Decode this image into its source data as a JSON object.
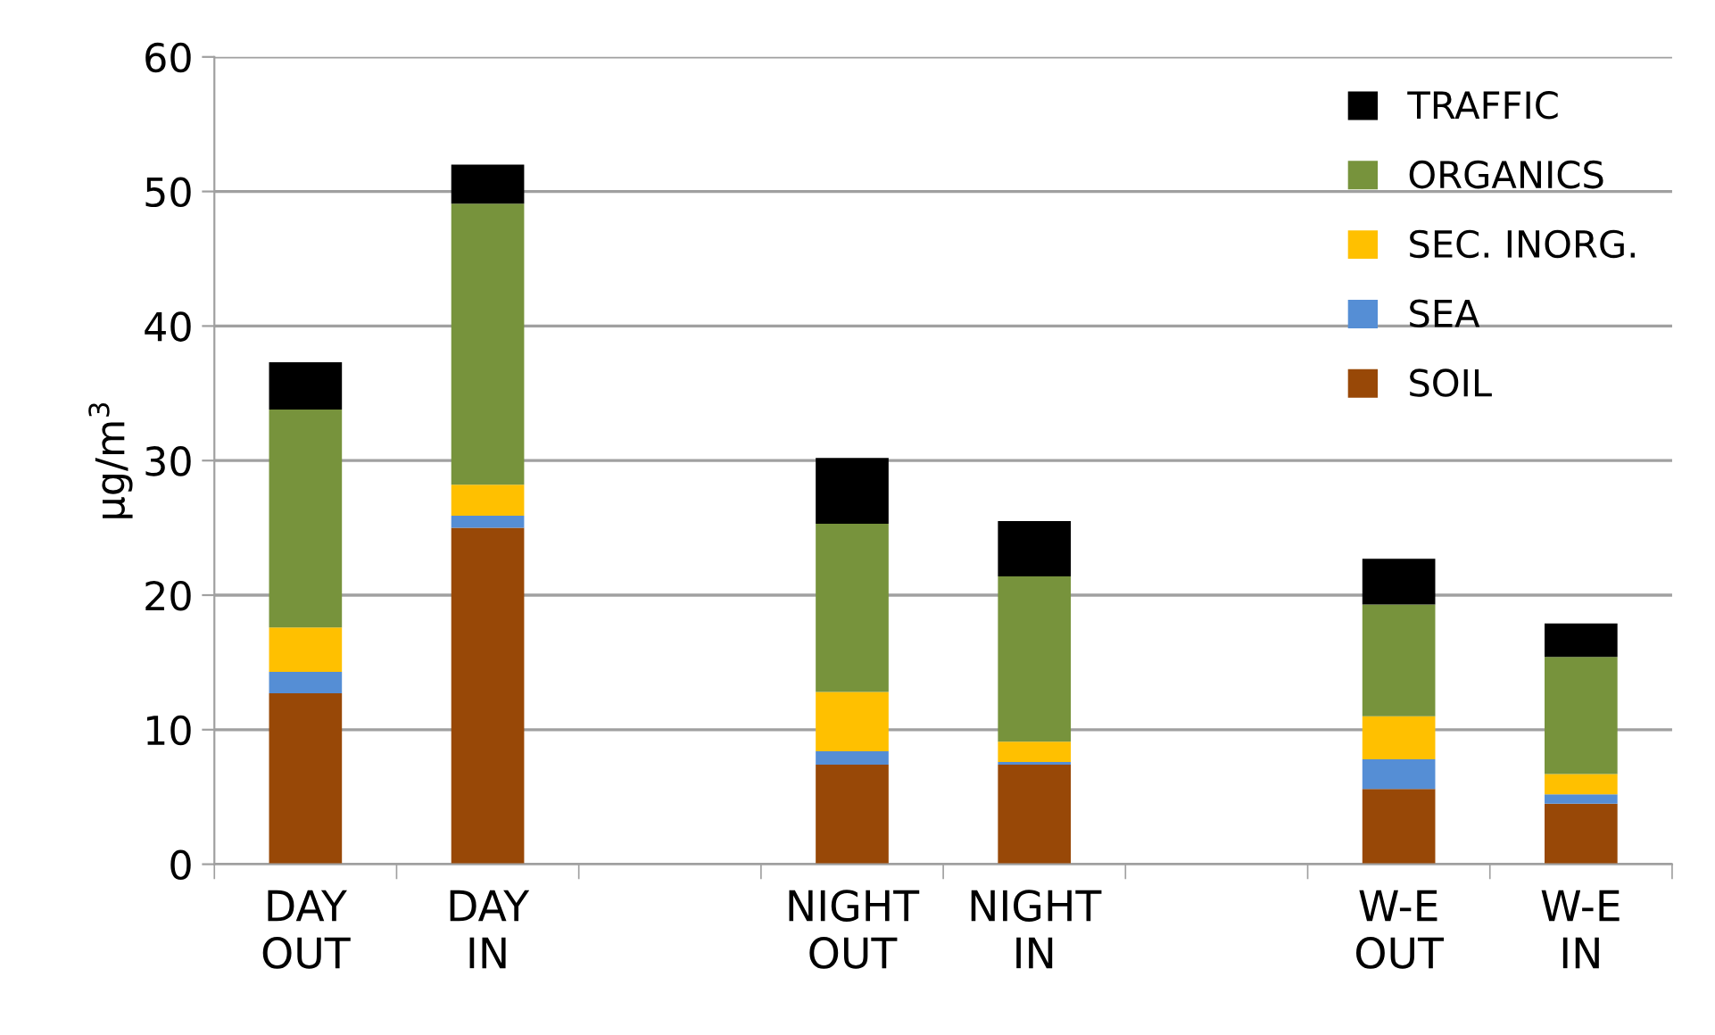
{
  "chart_data": {
    "type": "bar",
    "stacked": true,
    "ylabel": "μg/m$^{3}$",
    "categories": [
      "DAY\nOUT",
      "DAY\nIN",
      null,
      "NIGHT\nOUT",
      "NIGHT\nIN",
      null,
      "W-E\nOUT",
      "W-E\nIN"
    ],
    "series": [
      {
        "name": "SOIL",
        "color": "#984807",
        "values": [
          12.7,
          25.0,
          null,
          7.4,
          7.4,
          null,
          5.6,
          4.5
        ]
      },
      {
        "name": "SEA",
        "color": "#558ed5",
        "values": [
          1.6,
          0.9,
          null,
          1.0,
          0.2,
          null,
          2.2,
          0.7
        ]
      },
      {
        "name": "SEC. INORG.",
        "color": "#ffc000",
        "values": [
          3.3,
          2.3,
          null,
          4.4,
          1.5,
          null,
          3.2,
          1.5
        ]
      },
      {
        "name": "ORGANICS",
        "color": "#77933c",
        "values": [
          16.2,
          20.9,
          null,
          12.5,
          12.3,
          null,
          8.3,
          8.7
        ]
      },
      {
        "name": "TRAFFIC",
        "color": "#000000",
        "values": [
          3.5,
          2.9,
          null,
          4.9,
          4.1,
          null,
          3.4,
          2.5
        ]
      }
    ],
    "ylim": [
      0,
      60
    ],
    "yticks": [
      0,
      10,
      20,
      30,
      40,
      50,
      60
    ],
    "grid": "y",
    "legend": "top right"
  }
}
